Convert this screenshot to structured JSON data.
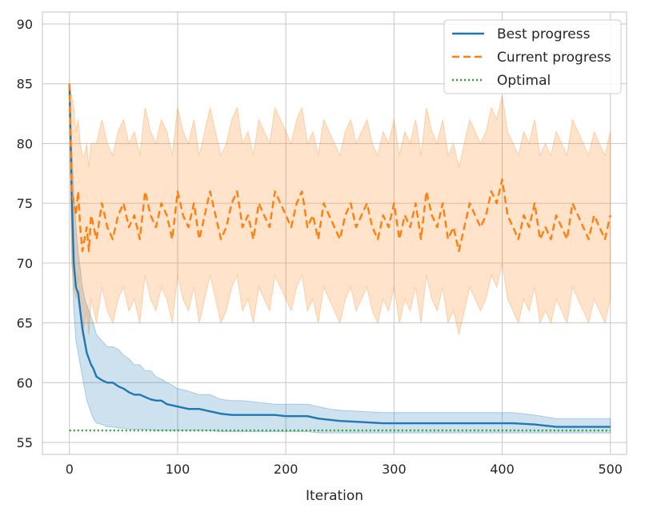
{
  "chart_data": {
    "type": "line",
    "title": "",
    "xlabel": "Iteration",
    "ylabel": "",
    "xlim": [
      -25,
      515
    ],
    "ylim": [
      54,
      91
    ],
    "xticks": [
      0,
      100,
      200,
      300,
      400,
      500
    ],
    "yticks": [
      55,
      60,
      65,
      70,
      75,
      80,
      85,
      90
    ],
    "grid": true,
    "legend_position": "top-right",
    "colors": {
      "best": "#1f77b4",
      "current": "#ff7f0e",
      "optimal": "#2ca02c",
      "grid": "#cccccc",
      "frame": "#cccccc"
    },
    "series": [
      {
        "name": "Best progress",
        "style": "solid",
        "x": [
          0,
          2,
          4,
          6,
          8,
          10,
          12,
          14,
          16,
          18,
          20,
          22,
          25,
          30,
          35,
          40,
          45,
          50,
          55,
          60,
          65,
          70,
          75,
          80,
          85,
          90,
          95,
          100,
          110,
          120,
          130,
          140,
          150,
          160,
          170,
          180,
          190,
          200,
          210,
          220,
          230,
          240,
          250,
          270,
          290,
          300,
          330,
          370,
          410,
          430,
          450,
          470,
          500
        ],
        "y": [
          85,
          76,
          70,
          68,
          67.5,
          66,
          64.5,
          63.5,
          62.5,
          62,
          61.5,
          61.2,
          60.5,
          60.2,
          60,
          60,
          59.7,
          59.5,
          59.2,
          59,
          59,
          58.8,
          58.6,
          58.5,
          58.5,
          58.2,
          58.1,
          58,
          57.8,
          57.8,
          57.6,
          57.4,
          57.3,
          57.3,
          57.3,
          57.3,
          57.3,
          57.2,
          57.2,
          57.2,
          57,
          56.9,
          56.8,
          56.7,
          56.6,
          56.6,
          56.6,
          56.6,
          56.6,
          56.5,
          56.3,
          56.3,
          56.3
        ],
        "band_upper": [
          85,
          80,
          76,
          73,
          71,
          69.5,
          68,
          67,
          66.5,
          66,
          65.5,
          65,
          64,
          63.5,
          63,
          63,
          62.8,
          62.3,
          62,
          61.5,
          61.5,
          61,
          61,
          60.5,
          60.3,
          60,
          59.8,
          59.5,
          59.3,
          59,
          59,
          58.6,
          58.5,
          58.5,
          58.4,
          58.3,
          58.2,
          58.2,
          58.2,
          58.2,
          58,
          57.8,
          57.7,
          57.6,
          57.5,
          57.5,
          57.5,
          57.5,
          57.5,
          57.3,
          57,
          57,
          57
        ],
        "band_lower": [
          84.5,
          72,
          66,
          63.5,
          62.5,
          61.5,
          60.5,
          59.5,
          58.5,
          58,
          57.5,
          57,
          56.6,
          56.5,
          56.3,
          56.3,
          56.2,
          56.2,
          56.1,
          56.1,
          56.1,
          56.1,
          56.1,
          56,
          56,
          56,
          56,
          56,
          56,
          56,
          56,
          55.9,
          55.9,
          55.9,
          55.9,
          55.9,
          55.9,
          55.9,
          55.9,
          55.9,
          55.8,
          55.8,
          55.8,
          55.8,
          55.8,
          55.8,
          55.8,
          55.8,
          55.8,
          55.8,
          55.8,
          55.8,
          55.8
        ]
      },
      {
        "name": "Current progress",
        "style": "dashed",
        "x": [
          0,
          2,
          4,
          6,
          8,
          10,
          12,
          14,
          16,
          18,
          20,
          25,
          30,
          35,
          40,
          45,
          50,
          55,
          60,
          65,
          70,
          75,
          80,
          85,
          90,
          95,
          100,
          105,
          110,
          115,
          120,
          125,
          130,
          135,
          140,
          145,
          150,
          155,
          160,
          165,
          170,
          175,
          180,
          185,
          190,
          195,
          200,
          205,
          210,
          215,
          220,
          225,
          230,
          235,
          240,
          245,
          250,
          255,
          260,
          265,
          270,
          275,
          280,
          285,
          290,
          295,
          300,
          305,
          310,
          315,
          320,
          325,
          330,
          335,
          340,
          345,
          350,
          355,
          360,
          365,
          370,
          375,
          380,
          385,
          390,
          395,
          400,
          405,
          410,
          415,
          420,
          425,
          430,
          435,
          440,
          445,
          450,
          455,
          460,
          465,
          470,
          475,
          480,
          485,
          490,
          495,
          500
        ],
        "y": [
          85,
          76,
          75,
          74,
          76,
          73,
          71,
          72,
          73,
          71,
          74,
          72,
          75,
          73,
          72,
          74,
          75,
          73,
          74,
          72,
          76,
          74,
          73,
          75,
          74,
          72,
          76,
          74,
          73,
          75,
          72,
          74,
          76,
          74,
          72,
          73,
          75,
          76,
          73,
          74,
          72,
          75,
          74,
          73,
          76,
          75,
          74,
          73,
          75,
          76,
          73,
          74,
          72,
          75,
          74,
          73,
          72,
          74,
          75,
          73,
          74,
          75,
          73,
          72,
          74,
          73,
          75,
          72,
          74,
          73,
          75,
          72,
          76,
          74,
          73,
          75,
          72,
          73,
          71,
          73,
          75,
          74,
          73,
          74,
          76,
          75,
          77,
          74,
          73,
          72,
          74,
          73,
          75,
          72,
          73,
          72,
          74,
          73,
          72,
          75,
          74,
          73,
          72,
          74,
          73,
          72,
          74
        ],
        "band_upper": [
          85,
          84,
          83,
          81,
          82,
          80,
          79,
          79,
          80,
          78,
          80,
          80,
          82,
          80,
          79,
          81,
          82,
          80,
          81,
          79,
          83,
          81,
          80,
          82,
          81,
          79,
          83,
          81,
          80,
          82,
          79,
          81,
          83,
          81,
          79,
          80,
          82,
          83,
          80,
          81,
          79,
          82,
          81,
          80,
          83,
          82,
          81,
          80,
          82,
          83,
          80,
          81,
          79,
          82,
          81,
          80,
          79,
          81,
          82,
          80,
          81,
          82,
          80,
          79,
          81,
          80,
          82,
          79,
          81,
          80,
          82,
          79,
          83,
          81,
          80,
          82,
          79,
          80,
          78,
          80,
          82,
          81,
          80,
          81,
          83,
          82,
          84,
          81,
          80,
          79,
          81,
          80,
          82,
          79,
          80,
          79,
          81,
          80,
          79,
          82,
          81,
          80,
          79,
          81,
          80,
          79,
          81
        ],
        "band_lower": [
          84.5,
          70,
          68,
          67,
          69,
          66,
          64,
          65,
          66,
          64,
          67,
          65,
          68,
          66,
          65,
          67,
          68,
          66,
          67,
          65,
          69,
          67,
          66,
          68,
          67,
          65,
          69,
          67,
          66,
          68,
          65,
          67,
          69,
          67,
          65,
          66,
          68,
          69,
          66,
          67,
          65,
          68,
          67,
          66,
          69,
          68,
          67,
          66,
          68,
          69,
          66,
          67,
          65,
          68,
          67,
          66,
          65,
          67,
          68,
          66,
          67,
          68,
          66,
          65,
          67,
          66,
          68,
          65,
          67,
          66,
          68,
          65,
          69,
          67,
          66,
          68,
          65,
          66,
          64,
          66,
          68,
          67,
          66,
          67,
          69,
          68,
          70,
          67,
          66,
          65,
          67,
          66,
          68,
          65,
          66,
          65,
          67,
          66,
          65,
          68,
          67,
          66,
          65,
          67,
          66,
          65,
          67
        ]
      },
      {
        "name": "Optimal",
        "style": "dotted",
        "x": [
          0,
          500
        ],
        "y": [
          56,
          56
        ]
      }
    ]
  }
}
